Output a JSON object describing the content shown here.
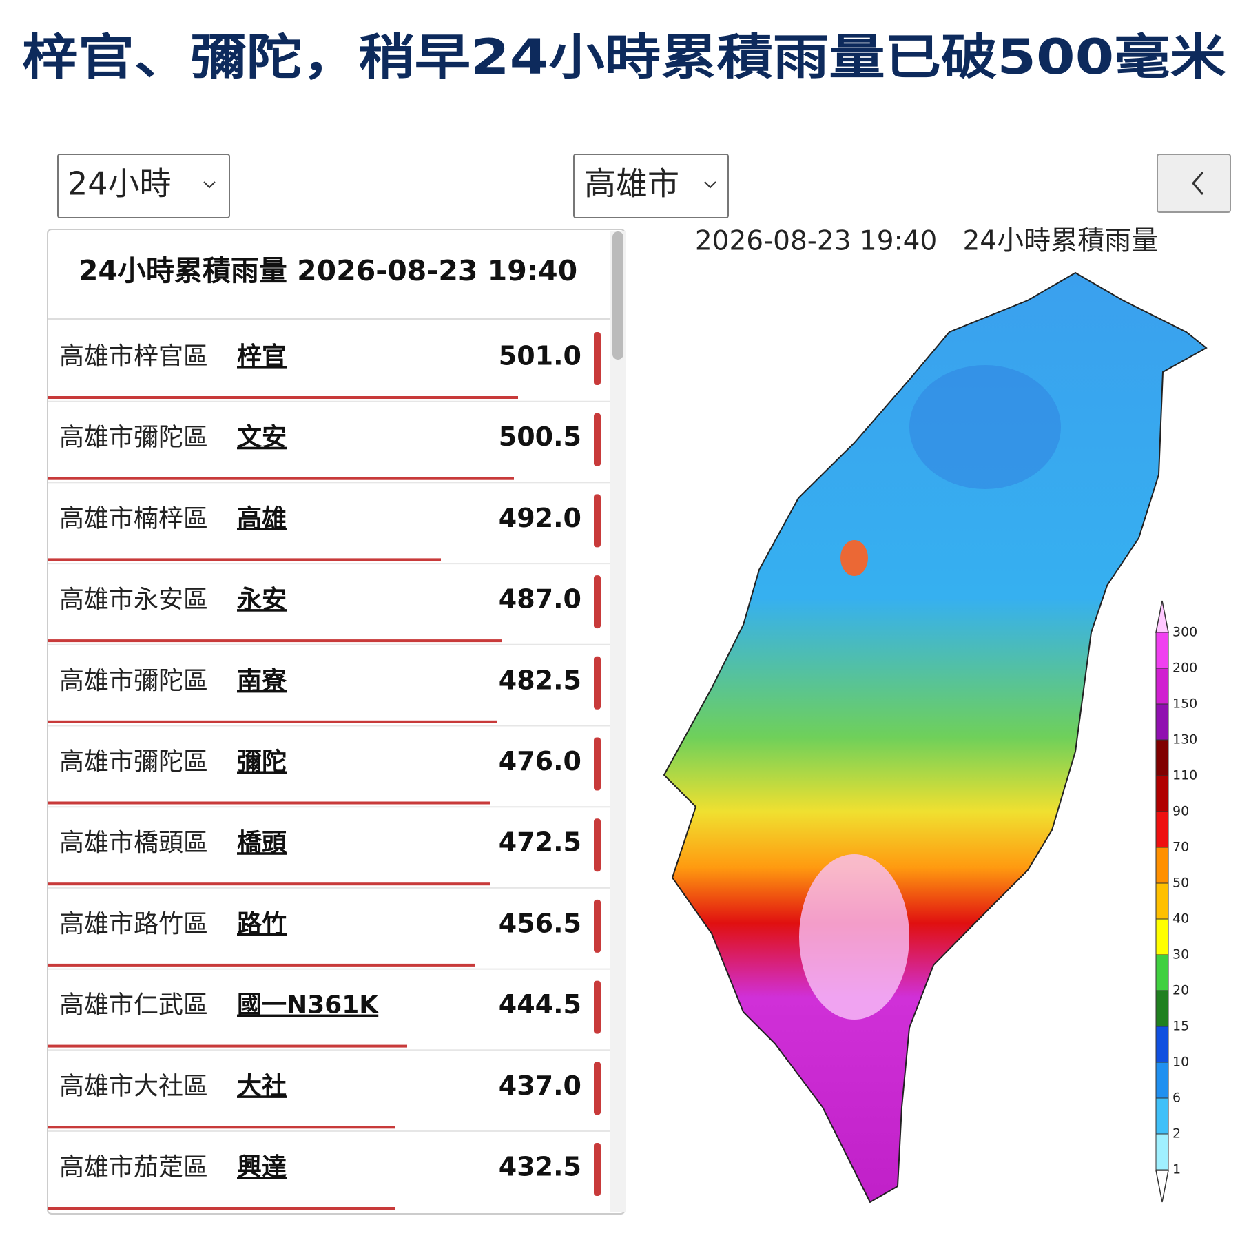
{
  "header": {
    "title": "梓官、彌陀，稍早24小時累積雨量已破500毫米"
  },
  "controls": {
    "period": "24小時",
    "city": "高雄市"
  },
  "table": {
    "title": "24小時累積雨量 2026-08-23 19:40",
    "rows": [
      {
        "district": "高雄市梓官區",
        "station": "梓官",
        "value": "501.0"
      },
      {
        "district": "高雄市彌陀區",
        "station": "文安",
        "value": "500.5"
      },
      {
        "district": "高雄市楠梓區",
        "station": "高雄",
        "value": "492.0"
      },
      {
        "district": "高雄市永安區",
        "station": "永安",
        "value": "487.0"
      },
      {
        "district": "高雄市彌陀區",
        "station": "南寮",
        "value": "482.5"
      },
      {
        "district": "高雄市彌陀區",
        "station": "彌陀",
        "value": "476.0"
      },
      {
        "district": "高雄市橋頭區",
        "station": "橋頭",
        "value": "472.5"
      },
      {
        "district": "高雄市路竹區",
        "station": "路竹",
        "value": "456.5"
      },
      {
        "district": "高雄市仁武區",
        "station": "國一N361K",
        "value": "444.5"
      },
      {
        "district": "高雄市大社區",
        "station": "大社",
        "value": "437.0"
      },
      {
        "district": "高雄市茄萣區",
        "station": "興達",
        "value": "432.5"
      }
    ]
  },
  "map": {
    "title": "2026-08-23 19:40   24小時累積雨量",
    "legend": [
      300,
      200,
      150,
      130,
      110,
      90,
      70,
      50,
      40,
      30,
      20,
      15,
      10,
      6,
      2,
      1
    ]
  }
}
